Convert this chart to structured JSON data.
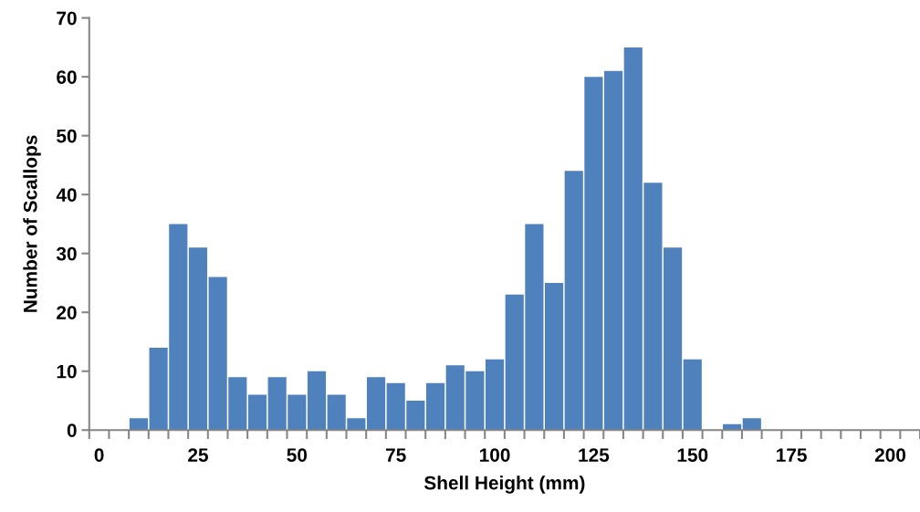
{
  "chart_data": {
    "type": "bar",
    "xlabel": "Shell Height (mm)",
    "ylabel": "Number of Scallops",
    "categories": [
      "0",
      null,
      null,
      null,
      null,
      "25",
      null,
      null,
      null,
      null,
      "50",
      null,
      null,
      null,
      null,
      "75",
      null,
      null,
      null,
      null,
      "100",
      null,
      null,
      null,
      null,
      "125",
      null,
      null,
      null,
      null,
      "150",
      null,
      null,
      null,
      null,
      "175",
      null,
      null,
      null,
      null,
      "200",
      null
    ],
    "values": [
      0,
      0,
      2,
      14,
      35,
      31,
      26,
      9,
      6,
      9,
      6,
      10,
      6,
      2,
      9,
      8,
      5,
      8,
      11,
      10,
      12,
      23,
      35,
      25,
      44,
      60,
      61,
      65,
      42,
      31,
      12,
      0,
      1,
      2,
      0,
      0,
      0,
      0,
      0,
      0,
      0,
      0
    ],
    "color": "#4f81bd",
    "ylim": [
      0,
      70
    ],
    "yticks": [
      0,
      10,
      20,
      30,
      40,
      50,
      60,
      70
    ],
    "grid": false,
    "legend": false
  }
}
